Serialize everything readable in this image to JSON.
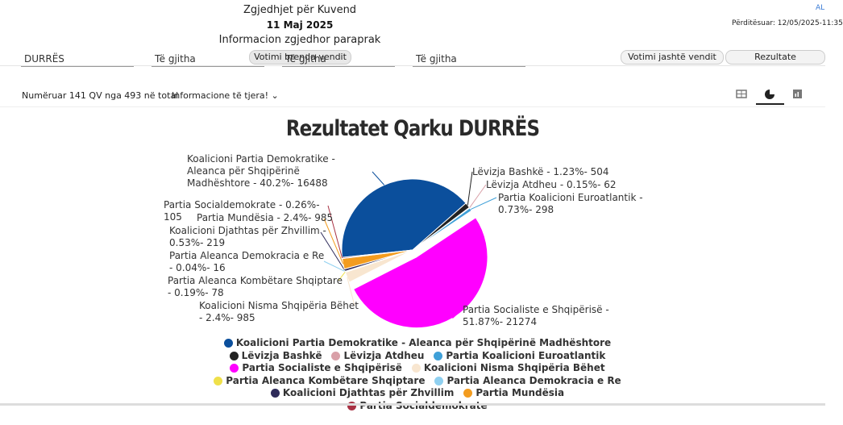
{
  "header": {
    "title": "Zgjedhjet për Kuvend",
    "date": "11 Maj 2025",
    "subtitle": "Informacion zgjedhor paraprak",
    "language": "AL",
    "updated": "Përditësuar: 12/05/2025-11:35",
    "tabs": [
      "Votimi brenda vendit",
      "Votimi jashtë vendit",
      "Rezultate"
    ]
  },
  "filters": [
    "DURRËS",
    "Të gjitha",
    "Të gjitha",
    "Të gjitha"
  ],
  "info": {
    "counted": "Numëruar 141 QV nga 493 në total",
    "more": "Informacione të tjera!"
  },
  "chart_data": {
    "type": "pie",
    "title": "Rezultatet Qarku DURRËS",
    "categories": [
      "Koalicioni Partia Demokratike - Aleanca për Shqipërinë Madhështore",
      "Lëvizja Bashkë",
      "Lëvizja Atdheu",
      "Partia Koalicioni Euroatlantik",
      "Partia Socialiste e Shqipërisë",
      "Koalicioni Nisma Shqipëria Bëhet",
      "Partia Aleanca Kombëtare Shqiptare",
      "Partia Aleanca Demokracia e Re",
      "Koalicioni Djathtas për Zhvillim",
      "Partia Mundësia",
      "Partia Socialdemokrate"
    ],
    "values": [
      16488,
      504,
      62,
      298,
      21274,
      985,
      78,
      16,
      219,
      985,
      105
    ],
    "percentages": [
      40.2,
      1.23,
      0.15,
      0.73,
      51.87,
      2.4,
      0.19,
      0.04,
      0.53,
      2.4,
      0.26
    ],
    "value_labels": [
      "Koalicioni Partia Demokratike - Aleanca për Shqipërinë Madhështore - 40.2%- 16488",
      "Lëvizja Bashkë - 1.23%- 504",
      "Lëvizja Atdheu - 0.15%- 62",
      "Partia Koalicioni Euroatlantik - 0.73%- 298",
      "Partia Socialiste e Shqipërisë - 51.87%- 21274",
      "Koalicioni Nisma Shqipëria Bëhet - 2.4%- 985",
      "Partia Aleanca Kombëtare Shqiptare - 0.19%- 78",
      "Partia Aleanca Demokracia e Re - 0.04%- 16",
      "Koalicioni Djathtas për Zhvillim - 0.53%- 219",
      "Partia Mundësia - 2.4%- 985",
      "Partia Socialdemokrate - 0.26%- 105"
    ],
    "colors": [
      "#0b4f9c",
      "#222222",
      "#d9a0a8",
      "#3fa0d8",
      "#ff00ff",
      "#f8e6d0",
      "#efe04a",
      "#8fd0f0",
      "#2e2b5a",
      "#f39c1f",
      "#a83244"
    ],
    "legend": true
  }
}
